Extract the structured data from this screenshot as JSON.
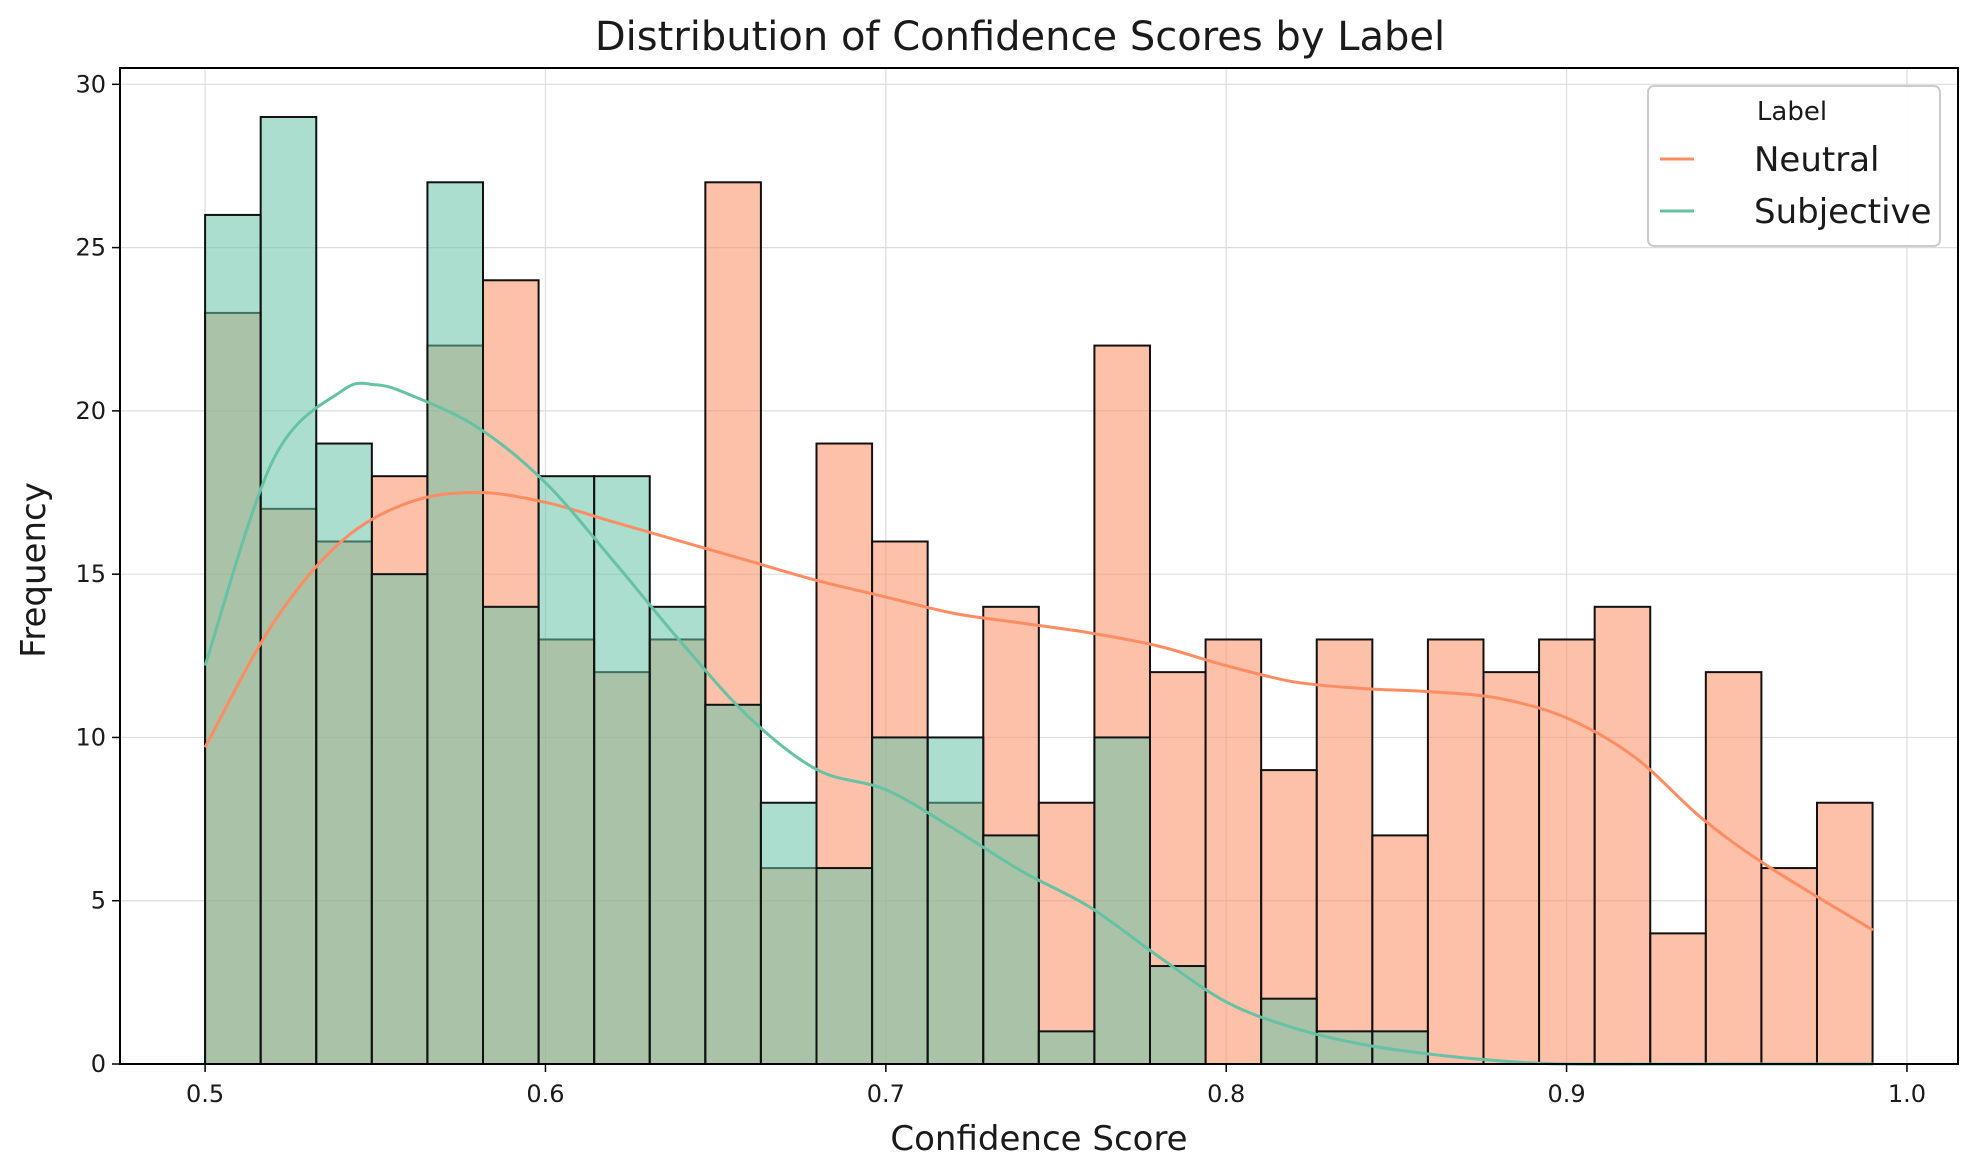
{
  "chart_data": {
    "type": "bar",
    "title": "Distribution of Confidence Scores by Label",
    "xlabel": "Confidence Score",
    "ylabel": "Frequency",
    "xlim": [
      0.475,
      1.015
    ],
    "ylim": [
      0,
      30.5
    ],
    "grid": true,
    "legend_placement": "top-right",
    "x_ticks": [
      0.5,
      0.6,
      0.7,
      0.8,
      0.9,
      1.0
    ],
    "x_tick_labels": [
      "0.5",
      "0.6",
      "0.7",
      "0.8",
      "0.9",
      "1.0"
    ],
    "y_ticks": [
      0,
      5,
      10,
      15,
      20,
      25,
      30
    ],
    "y_tick_labels": [
      "0",
      "5",
      "10",
      "15",
      "20",
      "25",
      "30"
    ],
    "legend_title": "Label",
    "colors": {
      "neutral_fill": "#FC8D62",
      "subjective_fill": "#66C2A5",
      "bar_edge": "#111111",
      "grid": "#dddddd"
    },
    "bins": {
      "start": 0.5,
      "width": 0.01633,
      "count": 30
    },
    "series": [
      {
        "name": "Neutral",
        "color": "#FC8D62",
        "values": [
          23,
          17,
          16,
          18,
          22,
          24,
          13,
          12,
          13,
          27,
          6,
          19,
          16,
          8,
          14,
          8,
          22,
          12,
          13,
          9,
          13,
          7,
          13,
          12,
          13,
          14,
          4,
          12,
          6,
          8
        ],
        "kde": {
          "x": [
            0.5,
            0.52,
            0.54,
            0.56,
            0.58,
            0.6,
            0.62,
            0.64,
            0.66,
            0.68,
            0.7,
            0.72,
            0.74,
            0.76,
            0.78,
            0.8,
            0.82,
            0.84,
            0.86,
            0.88,
            0.9,
            0.92,
            0.94,
            0.96,
            0.99
          ],
          "y": [
            9.7,
            13.5,
            16.0,
            17.2,
            17.5,
            17.2,
            16.6,
            16.0,
            15.4,
            14.8,
            14.3,
            13.8,
            13.5,
            13.2,
            12.8,
            12.2,
            11.7,
            11.5,
            11.4,
            11.2,
            10.6,
            9.4,
            7.5,
            6.0,
            4.1
          ]
        }
      },
      {
        "name": "Subjective",
        "color": "#66C2A5",
        "values": [
          26,
          29,
          19,
          15,
          27,
          14,
          18,
          18,
          14,
          11,
          8,
          6,
          10,
          10,
          7,
          1,
          10,
          3,
          0,
          2,
          1,
          1,
          0,
          0,
          0,
          0,
          0,
          0,
          0,
          0
        ],
        "kde": {
          "x": [
            0.5,
            0.52,
            0.54,
            0.55,
            0.56,
            0.58,
            0.6,
            0.62,
            0.64,
            0.66,
            0.68,
            0.7,
            0.72,
            0.74,
            0.76,
            0.78,
            0.8,
            0.82,
            0.84,
            0.86,
            0.88,
            0.9,
            0.95,
            0.99
          ],
          "y": [
            12.2,
            18.5,
            20.6,
            20.8,
            20.5,
            19.5,
            17.8,
            15.4,
            12.9,
            10.6,
            9.0,
            8.4,
            7.2,
            5.9,
            4.8,
            3.3,
            1.9,
            1.1,
            0.6,
            0.3,
            0.1,
            0.0,
            0.0,
            0.0
          ]
        }
      }
    ]
  }
}
